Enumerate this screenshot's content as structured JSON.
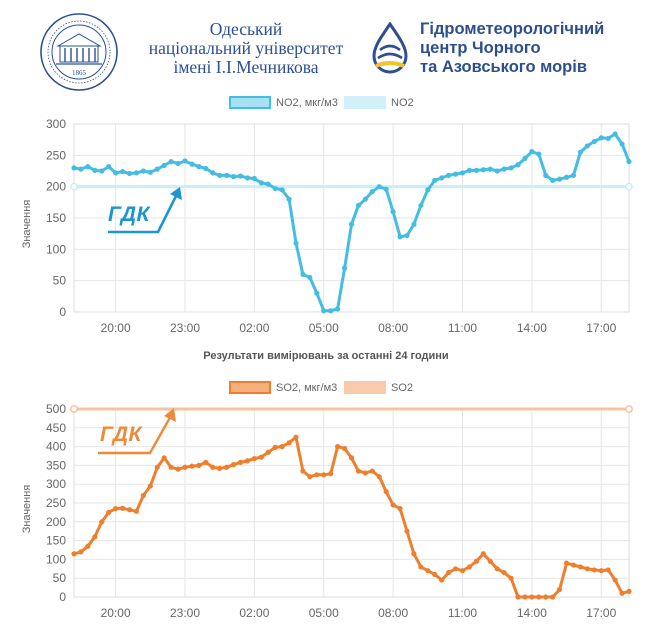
{
  "header": {
    "university": {
      "lines": [
        "Одеський",
        "національний університет",
        "імені І.І.Мечникова"
      ],
      "seal_year": "1865"
    },
    "hydromet": {
      "lines": [
        "Гідрометеорологічний",
        "центр Чорного",
        "та Азовського морів"
      ]
    }
  },
  "caption": "Результати вимірювань за останні 24 години",
  "limit_label": "ГДК",
  "colors": {
    "no2_line": "#45bde3",
    "no2_fill": "#a6e1f3",
    "no2_limit": "#c9eef9",
    "so2_line": "#ee7f2f",
    "so2_fill": "#f5b07c",
    "so2_limit": "#f7c39c",
    "gdk_no2": "#1d95cf",
    "gdk_so2": "#ee8a3c"
  },
  "chart_data": [
    {
      "id": "no2",
      "type": "line",
      "title": "",
      "ylabel": "Значення",
      "xlabel": "",
      "ylim": [
        0,
        300
      ],
      "yticks": [
        "0",
        "50",
        "100",
        "150",
        "200",
        "250",
        "300"
      ],
      "xlim": [
        -3,
        20.5
      ],
      "xticks": [
        {
          "label": "20:00",
          "x": 0
        },
        {
          "label": "23:00",
          "x": 3
        },
        {
          "label": "02:00",
          "x": 6
        },
        {
          "label": "05:00",
          "x": 9
        },
        {
          "label": "08:00",
          "x": 12
        },
        {
          "label": "11:00",
          "x": 15
        },
        {
          "label": "14:00",
          "x": 18
        },
        {
          "label": "17:00",
          "x": 21
        }
      ],
      "grid": true,
      "legend": "top",
      "series": [
        {
          "name": "NO2, мкг/м3",
          "x": [
            -1.8,
            -1.5,
            -1.2,
            -0.9,
            -0.6,
            -0.3,
            0,
            0.3,
            0.6,
            0.9,
            1.2,
            1.5,
            1.8,
            2.1,
            2.4,
            2.7,
            3.0,
            3.3,
            3.6,
            3.9,
            4.2,
            4.5,
            4.8,
            5.1,
            5.4,
            5.7,
            6.0,
            6.3,
            6.6,
            6.9,
            7.2,
            7.5,
            7.8,
            8.1,
            8.4,
            8.7,
            9.0,
            9.3,
            9.6,
            9.9,
            10.2,
            10.5,
            10.8,
            11.1,
            11.4,
            11.7,
            12.0,
            12.3,
            12.6,
            12.9,
            13.2,
            13.5,
            13.8,
            14.1,
            14.4,
            14.7,
            15.0,
            15.3,
            15.6,
            15.9,
            16.2,
            16.5,
            16.8,
            17.1,
            17.4,
            17.7,
            18.0,
            18.3,
            18.6,
            18.9,
            19.2,
            19.5,
            19.8,
            20.1,
            20.4,
            20.7,
            21.0,
            21.3,
            21.6,
            21.9,
            22.2
          ],
          "values": [
            230,
            228,
            232,
            226,
            225,
            232,
            222,
            224,
            221,
            222,
            225,
            223,
            228,
            234,
            240,
            237,
            241,
            236,
            232,
            229,
            222,
            218,
            218,
            216,
            217,
            214,
            213,
            206,
            204,
            197,
            195,
            180,
            110,
            60,
            55,
            30,
            2,
            2,
            5,
            70,
            140,
            170,
            180,
            192,
            200,
            196,
            160,
            120,
            122,
            140,
            170,
            195,
            210,
            214,
            218,
            220,
            222,
            226,
            226,
            227,
            228,
            225,
            228,
            230,
            235,
            245,
            256,
            252,
            218,
            210,
            212,
            215,
            218,
            255,
            265,
            272,
            278,
            277,
            284,
            268,
            240
          ]
        },
        {
          "name": "NO2",
          "x": [
            -1.8,
            22.2
          ],
          "values": [
            200,
            200
          ]
        }
      ]
    },
    {
      "id": "so2",
      "type": "line",
      "title": "",
      "ylabel": "Значення",
      "xlabel": "",
      "ylim": [
        0,
        500
      ],
      "yticks": [
        "0",
        "50",
        "100",
        "150",
        "200",
        "250",
        "300",
        "350",
        "400",
        "450",
        "500"
      ],
      "xlim": [
        -3,
        20.5
      ],
      "xticks": [
        {
          "label": "20:00",
          "x": 0
        },
        {
          "label": "23:00",
          "x": 3
        },
        {
          "label": "02:00",
          "x": 6
        },
        {
          "label": "05:00",
          "x": 9
        },
        {
          "label": "08:00",
          "x": 12
        },
        {
          "label": "11:00",
          "x": 15
        },
        {
          "label": "14:00",
          "x": 18
        },
        {
          "label": "17:00",
          "x": 21
        }
      ],
      "grid": true,
      "legend": "top",
      "series": [
        {
          "name": "SO2, мкг/м3",
          "x": [
            -1.8,
            -1.5,
            -1.2,
            -0.9,
            -0.6,
            -0.3,
            0,
            0.3,
            0.6,
            0.9,
            1.2,
            1.5,
            1.8,
            2.1,
            2.4,
            2.7,
            3.0,
            3.3,
            3.6,
            3.9,
            4.2,
            4.5,
            4.8,
            5.1,
            5.4,
            5.7,
            6.0,
            6.3,
            6.6,
            6.9,
            7.2,
            7.5,
            7.8,
            8.1,
            8.4,
            8.7,
            9.0,
            9.3,
            9.6,
            9.9,
            10.2,
            10.5,
            10.8,
            11.1,
            11.4,
            11.7,
            12.0,
            12.3,
            12.6,
            12.9,
            13.2,
            13.5,
            13.8,
            14.1,
            14.4,
            14.7,
            15.0,
            15.3,
            15.6,
            15.9,
            16.2,
            16.5,
            16.8,
            17.1,
            17.4,
            17.7,
            18.0,
            18.3,
            18.6,
            18.9,
            19.2,
            19.5,
            19.8,
            20.1,
            20.4,
            20.7,
            21.0,
            21.3,
            21.6,
            21.9,
            22.2
          ],
          "values": [
            115,
            120,
            135,
            160,
            200,
            225,
            235,
            236,
            232,
            228,
            270,
            295,
            345,
            370,
            345,
            340,
            345,
            348,
            350,
            358,
            345,
            342,
            345,
            352,
            358,
            362,
            368,
            372,
            385,
            398,
            400,
            410,
            425,
            335,
            320,
            325,
            325,
            328,
            400,
            395,
            370,
            335,
            330,
            335,
            320,
            280,
            245,
            235,
            175,
            115,
            80,
            70,
            60,
            45,
            65,
            75,
            70,
            80,
            95,
            115,
            95,
            75,
            65,
            50,
            0,
            0,
            0,
            0,
            0,
            0,
            20,
            90,
            85,
            80,
            75,
            72,
            70,
            72,
            45,
            10,
            15
          ]
        },
        {
          "name": "SO2",
          "x": [
            -1.8,
            22.2
          ],
          "values": [
            500,
            500
          ]
        }
      ]
    }
  ]
}
